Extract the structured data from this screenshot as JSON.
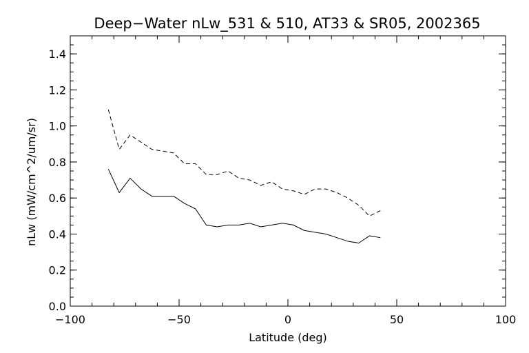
{
  "chart_data": {
    "type": "line",
    "title": "Deep−Water nLw_531 & 510, AT33 & SR05, 2002365",
    "xlabel": "Latitude (deg)",
    "ylabel": "nLw (mW/cm^2/um/sr)",
    "xlim": [
      -100,
      100
    ],
    "ylim": [
      0.0,
      1.5
    ],
    "x_ticks": [
      -100,
      -50,
      0,
      50,
      100
    ],
    "x_tick_labels": [
      "−100",
      "−50",
      "0",
      "50",
      "100"
    ],
    "y_ticks": [
      0.0,
      0.2,
      0.4,
      0.6,
      0.8,
      1.0,
      1.2,
      1.4
    ],
    "y_tick_labels": [
      "0.0",
      "0.2",
      "0.4",
      "0.6",
      "0.8",
      "1.0",
      "1.2",
      "1.4"
    ],
    "x_minor_step": 10,
    "y_minor_step": 0.05,
    "grid": false,
    "series": [
      {
        "style": "dashed",
        "x": [
          -82.5,
          -77.5,
          -72.5,
          -67.5,
          -62.5,
          -57.5,
          -52.5,
          -47.5,
          -42.5,
          -37.5,
          -32.5,
          -27.5,
          -22.5,
          -17.5,
          -12.5,
          -7.5,
          -2.5,
          2.5,
          7.5,
          12.5,
          17.5,
          22.5,
          27.5,
          32.5,
          37.5,
          42.5
        ],
        "values": [
          1.09,
          0.87,
          0.95,
          0.91,
          0.87,
          0.86,
          0.85,
          0.79,
          0.79,
          0.73,
          0.73,
          0.75,
          0.71,
          0.7,
          0.67,
          0.69,
          0.65,
          0.64,
          0.62,
          0.65,
          0.65,
          0.63,
          0.6,
          0.56,
          0.5,
          0.53
        ]
      },
      {
        "style": "solid",
        "x": [
          -82.5,
          -77.5,
          -72.5,
          -67.5,
          -62.5,
          -57.5,
          -52.5,
          -47.5,
          -42.5,
          -37.5,
          -32.5,
          -27.5,
          -22.5,
          -17.5,
          -12.5,
          -7.5,
          -2.5,
          2.5,
          7.5,
          12.5,
          17.5,
          22.5,
          27.5,
          32.5,
          37.5,
          42.5
        ],
        "values": [
          0.76,
          0.63,
          0.71,
          0.65,
          0.61,
          0.61,
          0.61,
          0.57,
          0.54,
          0.45,
          0.44,
          0.45,
          0.45,
          0.46,
          0.44,
          0.45,
          0.46,
          0.45,
          0.42,
          0.41,
          0.4,
          0.38,
          0.36,
          0.35,
          0.39,
          0.38
        ]
      }
    ]
  }
}
